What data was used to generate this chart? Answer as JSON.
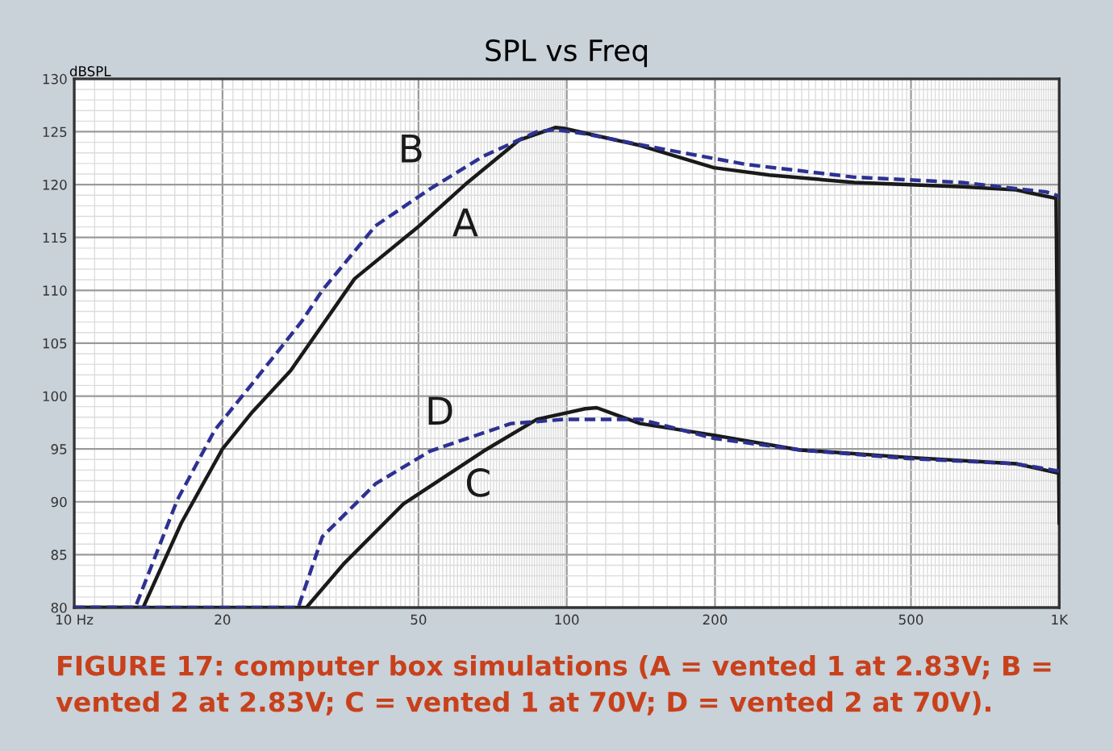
{
  "chart_data": {
    "type": "line",
    "title": "SPL vs Freq",
    "ylabel": "dBSPL",
    "log": "x",
    "grid": true,
    "legend": false,
    "xlim": [
      10,
      1000
    ],
    "xticks": [
      {
        "value": 10,
        "label": "10 Hz"
      },
      20,
      50,
      100,
      200,
      500,
      {
        "value": 1000,
        "label": "1K"
      }
    ],
    "ylim": [
      80,
      130
    ],
    "yticks": [
      80,
      85,
      90,
      95,
      100,
      105,
      110,
      115,
      120,
      125,
      130
    ],
    "series": [
      {
        "color": "#1a1a1a",
        "line_style": "solid",
        "x": [
          10,
          13.8,
          16.5,
          20,
          23,
          27.5,
          37.1,
          50.2,
          62.9,
          80,
          95,
          99,
          141,
          199,
          258,
          384,
          636,
          816,
          985,
          1000
        ],
        "values": [
          80,
          80,
          88,
          95,
          98.5,
          102.4,
          111.1,
          116.1,
          120.2,
          124.2,
          125.4,
          125.3,
          123.7,
          121.6,
          120.9,
          120.2,
          119.8,
          119.5,
          118.7,
          88
        ]
      },
      {
        "color": "#2e3192",
        "line_style": "dashed",
        "x": [
          10,
          13.3,
          16.2,
          19.3,
          23.1,
          28.9,
          31.9,
          40.9,
          52.8,
          67.8,
          87,
          95,
          109,
          155,
          232,
          384,
          636,
          942,
          1000
        ],
        "values": [
          80,
          80,
          90.2,
          96.8,
          101.3,
          107,
          110,
          116.1,
          119.6,
          122.7,
          125,
          125.2,
          124.8,
          123.4,
          121.9,
          120.7,
          120.2,
          119.3,
          118.9
        ]
      },
      {
        "color": "#1a1a1a",
        "line_style": "solid",
        "x": [
          10,
          29.6,
          35.2,
          46.6,
          67.8,
          87,
          109,
          115,
          141,
          199,
          298,
          492,
          816,
          1000
        ],
        "values": [
          80,
          80,
          84.1,
          89.8,
          94.8,
          97.8,
          98.8,
          98.9,
          97.4,
          96.3,
          94.9,
          94.2,
          93.6,
          92.7
        ]
      },
      {
        "color": "#2e3192",
        "line_style": "dashed",
        "x": [
          10,
          28.5,
          31.9,
          40.9,
          52.8,
          77,
          99,
          141,
          199,
          298,
          492,
          816,
          1000
        ],
        "values": [
          80,
          80,
          86.7,
          91.7,
          94.8,
          97.4,
          97.8,
          97.8,
          96,
          94.9,
          94.1,
          93.6,
          92.9
        ]
      }
    ],
    "annotations": [
      "A",
      "B",
      "C",
      "D",
      "FIGURE 17: computer box simulations (A = vented 1 at 2.83V; B = vented 2 at 2.83V; C = vented 1 at 70V; D = vented 2 at 70V)."
    ]
  }
}
